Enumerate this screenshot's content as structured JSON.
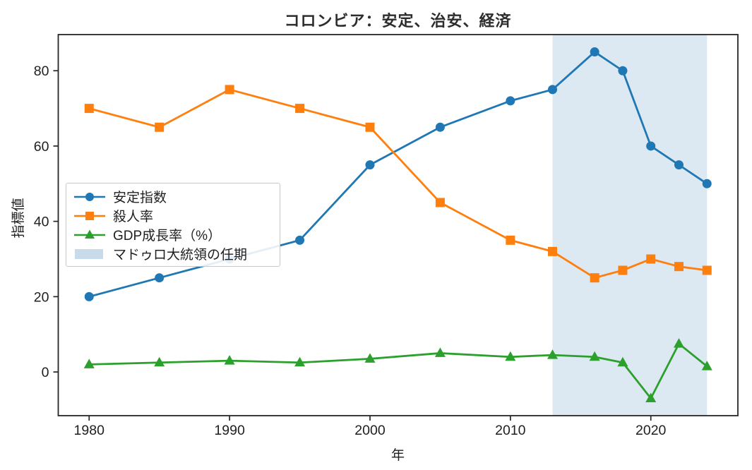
{
  "chart_data": {
    "type": "line",
    "title": "コロンビア：安定、治安、経済",
    "xlabel": "年",
    "ylabel": "指標値",
    "x": [
      1980,
      1985,
      1990,
      1995,
      2000,
      2005,
      2010,
      2013,
      2016,
      2018,
      2020,
      2022,
      2024
    ],
    "series": [
      {
        "name": "安定指数",
        "color": "#1f77b4",
        "marker": "circle",
        "values": [
          20,
          25,
          30,
          35,
          55,
          65,
          72,
          75,
          85,
          80,
          60,
          55,
          50
        ]
      },
      {
        "name": "殺人率",
        "color": "#ff7f0e",
        "marker": "square",
        "values": [
          70,
          65,
          75,
          70,
          65,
          45,
          35,
          32,
          25,
          27,
          30,
          28,
          27
        ]
      },
      {
        "name": "GDP成長率（%）",
        "color": "#2ca02c",
        "marker": "triangle",
        "values": [
          2,
          2.5,
          3,
          2.5,
          3.5,
          5,
          4,
          4.5,
          4,
          2.5,
          -7,
          7.5,
          1.5
        ]
      }
    ],
    "band": {
      "label": "マドゥロ大統領の任期",
      "from": 2013,
      "to": 2024,
      "color": "#b9d2e6",
      "opacity": 0.5
    },
    "xticks": [
      1980,
      1990,
      2000,
      2010,
      2020
    ],
    "yticks": [
      0,
      20,
      40,
      60,
      80
    ],
    "xlim": [
      1977.8,
      2026.2
    ],
    "ylim": [
      -11.6,
      89.6
    ],
    "grid": false,
    "legend_position": "center-left"
  },
  "colors": {
    "axis": "#262626",
    "tick_text": "#1f1f1f",
    "background": "#ffffff",
    "legend_border": "#c8c8c8"
  }
}
